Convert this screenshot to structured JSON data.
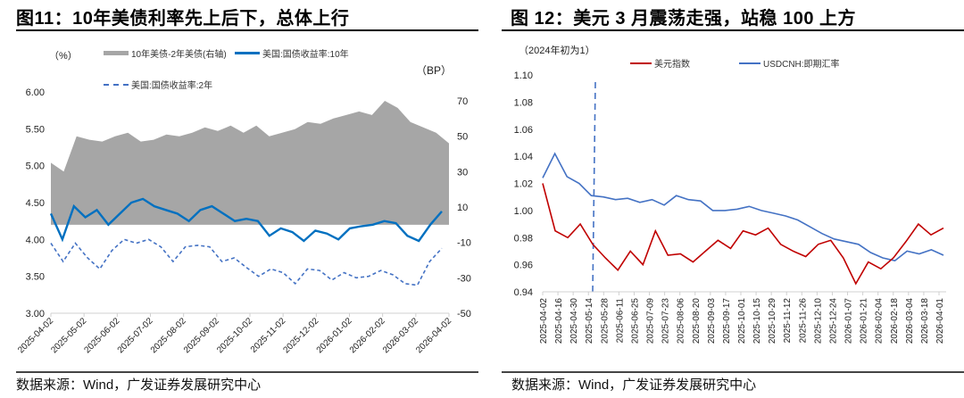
{
  "left": {
    "title": "图11：10年美债利率先上后下，总体上行",
    "source": "数据来源：Wind，广发证券发展研究中心",
    "unit_left": "（%）",
    "unit_right": "（BP）",
    "legend": [
      {
        "label": "10年美债-2年美债(右轴)",
        "color": "#a6a6a6",
        "style": "area"
      },
      {
        "label": "美国:国债收益率:10年",
        "color": "#0070c0",
        "style": "solid"
      },
      {
        "label": "美国:国债收益率:2年",
        "color": "#4472c4",
        "style": "dashed"
      }
    ]
  },
  "right": {
    "title": "图 12：美元 3 月震荡走强，站稳 100 上方",
    "source": "数据来源：Wind，广发证券发展研究中心",
    "unit_left": "（2024年初为1）",
    "legend": [
      {
        "label": "美元指数",
        "color": "#c00000",
        "style": "solid"
      },
      {
        "label": "USDCNH:即期汇率",
        "color": "#4472c4",
        "style": "solid"
      }
    ]
  },
  "chart_data": [
    {
      "type": "line",
      "title": "图11：10年美债利率先上后下，总体上行",
      "xlabel": "",
      "ylabel": "%",
      "ylabel_right": "BP",
      "ylim": [
        3.0,
        6.0
      ],
      "ylim_right": [
        -50,
        80
      ],
      "yticks": [
        "6.00",
        "5.50",
        "5.00",
        "4.50",
        "4.00",
        "3.50",
        "3.00"
      ],
      "yticks_right": [
        "70",
        "50",
        "30",
        "10",
        "-10",
        "-30",
        "-50"
      ],
      "x": [
        "2025-04-02",
        "2025-05-02",
        "2025-06-02",
        "2025-07-02",
        "2025-08-02",
        "2025-09-02",
        "2025-10-02",
        "2025-11-02",
        "2025-12-02",
        "2026-01-02",
        "2026-02-02",
        "2026-03-02",
        "2026-04-02"
      ],
      "grid": false,
      "legend_position": "top",
      "series": [
        {
          "name": "10年美债-2年美债(右轴)",
          "type": "area",
          "axis": "right",
          "values": [
            35,
            30,
            50,
            48,
            47,
            50,
            52,
            47,
            48,
            51,
            50,
            52,
            55,
            53,
            56,
            52,
            56,
            50,
            52,
            54,
            58,
            57,
            60,
            62,
            64,
            62,
            70,
            66,
            58,
            55,
            52,
            46
          ]
        },
        {
          "name": "美国:国债收益率:10年",
          "type": "line",
          "axis": "left",
          "values": [
            4.35,
            4.0,
            4.45,
            4.3,
            4.4,
            4.2,
            4.35,
            4.5,
            4.55,
            4.45,
            4.4,
            4.35,
            4.25,
            4.4,
            4.45,
            4.35,
            4.25,
            4.28,
            4.25,
            4.05,
            4.15,
            4.1,
            3.98,
            4.12,
            4.08,
            4.0,
            4.15,
            4.18,
            4.2,
            4.25,
            4.22,
            4.05,
            3.98,
            4.2,
            4.38
          ]
        },
        {
          "name": "美国:国债收益率:2年",
          "type": "line",
          "axis": "left",
          "values": [
            3.95,
            3.7,
            3.95,
            3.75,
            3.6,
            3.85,
            4.0,
            3.95,
            4.0,
            3.9,
            3.7,
            3.9,
            3.92,
            3.9,
            3.7,
            3.75,
            3.62,
            3.5,
            3.6,
            3.55,
            3.4,
            3.6,
            3.58,
            3.45,
            3.55,
            3.48,
            3.5,
            3.58,
            3.52,
            3.4,
            3.38,
            3.7,
            3.88
          ]
        }
      ]
    },
    {
      "type": "line",
      "title": "图 12：美元 3 月震荡走强，站稳 100 上方",
      "xlabel": "",
      "ylabel": "2024年初为1",
      "ylim": [
        0.94,
        1.1
      ],
      "yticks": [
        "1.10",
        "1.08",
        "1.06",
        "1.04",
        "1.02",
        "1.00",
        "0.98",
        "0.96",
        "0.94"
      ],
      "x": [
        "2025-04-02",
        "2025-04-16",
        "2025-04-30",
        "2025-05-14",
        "2025-05-28",
        "2025-06-11",
        "2025-06-25",
        "2025-07-09",
        "2025-07-23",
        "2025-08-06",
        "2025-08-20",
        "2025-09-03",
        "2025-09-17",
        "2025-10-01",
        "2025-10-15",
        "2025-10-29",
        "2025-11-12",
        "2025-11-26",
        "2025-12-10",
        "2025-12-24",
        "2026-01-07",
        "2026-01-21",
        "2026-02-04",
        "2026-02-18",
        "2026-03-04",
        "2026-03-18",
        "2026-04-01"
      ],
      "grid": false,
      "legend_position": "top",
      "annotations": [
        {
          "type": "vertical-dashed-line",
          "x": "2025-05-14",
          "color": "#4472c4"
        }
      ],
      "series": [
        {
          "name": "美元指数",
          "color": "#c00000",
          "values": [
            1.02,
            0.985,
            0.98,
            0.99,
            0.975,
            0.965,
            0.956,
            0.97,
            0.96,
            0.985,
            0.967,
            0.968,
            0.962,
            0.97,
            0.978,
            0.972,
            0.985,
            0.982,
            0.987,
            0.975,
            0.97,
            0.966,
            0.975,
            0.978,
            0.965,
            0.946,
            0.962,
            0.957,
            0.965,
            0.977,
            0.99,
            0.982,
            0.987
          ]
        },
        {
          "name": "USDCNH:即期汇率",
          "color": "#4472c4",
          "values": [
            1.024,
            1.042,
            1.025,
            1.02,
            1.011,
            1.01,
            1.008,
            1.009,
            1.006,
            1.008,
            1.004,
            1.011,
            1.008,
            1.007,
            1.0,
            1.0,
            1.001,
            1.003,
            1.0,
            0.998,
            0.996,
            0.993,
            0.988,
            0.983,
            0.979,
            0.977,
            0.975,
            0.969,
            0.965,
            0.963,
            0.97,
            0.968,
            0.971,
            0.967
          ]
        }
      ]
    }
  ]
}
